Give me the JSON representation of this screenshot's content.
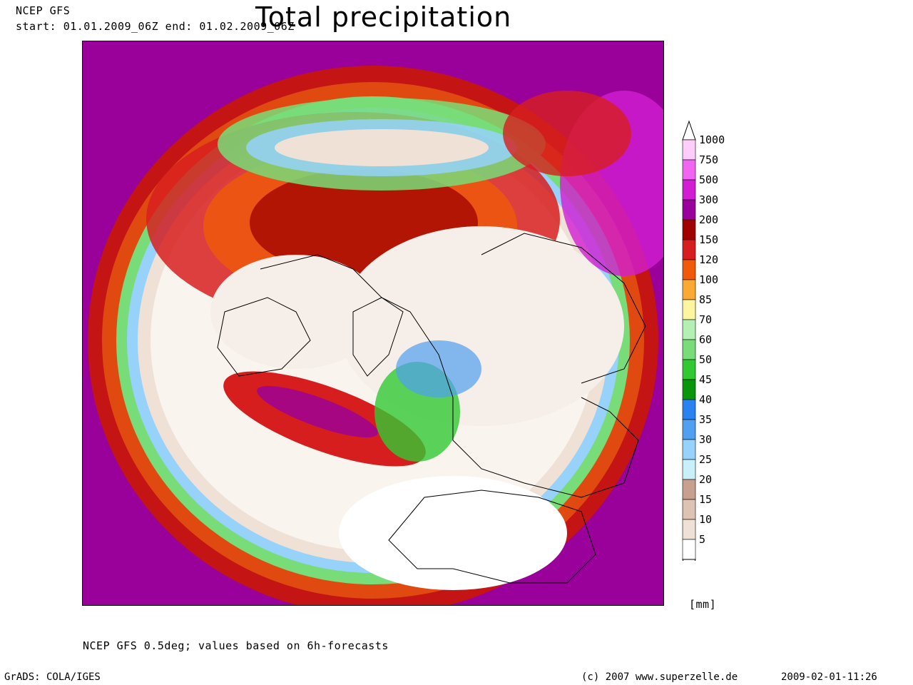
{
  "header": {
    "model": "NCEP GFS",
    "period": "start: 01.01.2009_06Z end: 01.02.2009_06Z",
    "title": "Total precipitation"
  },
  "legend": {
    "unit": "[mm]",
    "levels": [
      {
        "label": "1000",
        "color": "#ffcdfa"
      },
      {
        "label": "750",
        "color": "#f066f0"
      },
      {
        "label": "500",
        "color": "#d21ed2"
      },
      {
        "label": "300",
        "color": "#9a009a"
      },
      {
        "label": "200",
        "color": "#a00000"
      },
      {
        "label": "150",
        "color": "#d71e1e"
      },
      {
        "label": "120",
        "color": "#f05a0a"
      },
      {
        "label": "100",
        "color": "#faaa32"
      },
      {
        "label": "85",
        "color": "#fff5a0"
      },
      {
        "label": "70",
        "color": "#b4f0b4"
      },
      {
        "label": "60",
        "color": "#78dc78"
      },
      {
        "label": "50",
        "color": "#32c832"
      },
      {
        "label": "45",
        "color": "#0a960a"
      },
      {
        "label": "40",
        "color": "#2882f0"
      },
      {
        "label": "35",
        "color": "#50a0f0"
      },
      {
        "label": "30",
        "color": "#96d2fa"
      },
      {
        "label": "25",
        "color": "#c8f0fa"
      },
      {
        "label": "20",
        "color": "#c8a090"
      },
      {
        "label": "15",
        "color": "#dcc3b4"
      },
      {
        "label": "10",
        "color": "#f0e1d7"
      },
      {
        "label": "5",
        "color": "#ffffff"
      }
    ]
  },
  "footer": {
    "note": "NCEP GFS 0.5deg; values based on 6h-forecasts",
    "software": "GrADS: COLA/IGES",
    "credit": "(c) 2007 www.superzelle.de",
    "timestamp": "2009-02-01-11:26"
  }
}
